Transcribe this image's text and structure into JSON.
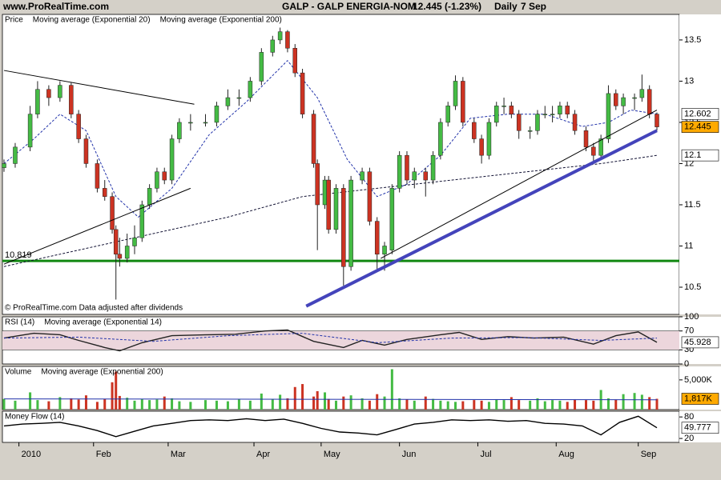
{
  "header": {
    "site": "www.ProRealTime.com",
    "instrument": "GALP - GALP ENERGIA-NOM",
    "quote": "12.445 (-1.23%)",
    "period": "Daily",
    "date": "7 Sep"
  },
  "chart_data": [
    {
      "type": "candlestick",
      "title": "Price",
      "footnote": "© ProRealTime.com  Data adjusted after dividends",
      "up_color": "#44bb44",
      "down_color": "#cc3322",
      "last_color": "#ffaa00",
      "xlim": [
        0,
        175
      ],
      "xticks": [
        {
          "value": 4,
          "label": "2010"
        },
        {
          "value": 24,
          "label": "Feb"
        },
        {
          "value": 44,
          "label": "Mar"
        },
        {
          "value": 67,
          "label": "Apr"
        },
        {
          "value": 85,
          "label": "May"
        },
        {
          "value": 106,
          "label": "Jun"
        },
        {
          "value": 127,
          "label": "Jul"
        },
        {
          "value": 148,
          "label": "Aug"
        },
        {
          "value": 170,
          "label": "Sep"
        }
      ],
      "ylim": [
        10.17,
        13.81
      ],
      "yticks": [
        10.5,
        11,
        11.5,
        12,
        12.5,
        13,
        13.5
      ],
      "x": [
        0,
        3,
        7,
        9,
        12,
        15,
        18,
        20,
        22,
        25,
        27,
        29,
        30,
        31,
        33,
        35,
        37,
        39,
        41,
        43,
        45,
        47,
        50,
        54,
        57,
        60,
        63,
        66,
        69,
        72,
        74,
        76,
        78,
        80,
        83,
        84,
        86,
        87,
        89,
        91,
        93,
        96,
        98,
        100,
        102,
        104,
        106,
        108,
        110,
        113,
        115,
        117,
        119,
        121,
        123,
        126,
        128,
        130,
        132,
        134,
        136,
        138,
        141,
        143,
        145,
        147,
        149,
        151,
        153,
        156,
        158,
        160,
        162,
        164,
        166,
        169,
        171,
        173,
        175
      ],
      "open": [
        11.95,
        12.0,
        12.2,
        12.6,
        12.9,
        12.8,
        12.95,
        12.6,
        12.3,
        12.0,
        11.7,
        11.6,
        11.2,
        10.9,
        10.85,
        11.0,
        11.1,
        11.5,
        11.7,
        11.9,
        11.8,
        12.3,
        12.5,
        12.5,
        12.5,
        12.7,
        12.8,
        12.8,
        13.0,
        13.35,
        13.5,
        13.6,
        13.4,
        13.1,
        12.6,
        12.0,
        11.5,
        11.8,
        11.2,
        11.7,
        10.75,
        11.8,
        11.9,
        11.3,
        10.9,
        10.95,
        11.7,
        12.1,
        11.8,
        11.9,
        11.8,
        12.1,
        12.5,
        12.7,
        13.0,
        12.5,
        12.3,
        12.1,
        12.5,
        12.7,
        12.7,
        12.6,
        12.4,
        12.4,
        12.6,
        12.6,
        12.6,
        12.7,
        12.6,
        12.4,
        12.2,
        12.1,
        12.3,
        12.85,
        12.7,
        12.8,
        12.8,
        12.9,
        12.6
      ],
      "high": [
        12.05,
        12.25,
        12.7,
        13.0,
        12.95,
        13.0,
        12.98,
        12.65,
        12.35,
        12.05,
        11.8,
        11.65,
        11.25,
        11.1,
        11.15,
        11.25,
        11.55,
        11.75,
        11.95,
        11.95,
        12.35,
        12.55,
        12.6,
        12.6,
        12.75,
        12.9,
        12.9,
        13.05,
        13.4,
        13.55,
        13.65,
        13.62,
        13.45,
        13.15,
        12.65,
        12.05,
        11.85,
        11.85,
        11.75,
        11.75,
        11.85,
        11.95,
        11.95,
        11.35,
        11.05,
        11.75,
        12.15,
        12.15,
        11.95,
        11.95,
        12.15,
        12.55,
        12.75,
        13.07,
        13.05,
        12.55,
        12.35,
        12.55,
        12.75,
        12.8,
        12.75,
        12.65,
        12.45,
        12.65,
        12.7,
        12.7,
        12.75,
        12.75,
        12.65,
        12.45,
        12.25,
        12.35,
        12.95,
        12.9,
        12.85,
        12.85,
        13.08,
        12.95,
        12.62
      ],
      "low": [
        11.9,
        11.95,
        12.15,
        12.55,
        12.7,
        12.75,
        12.55,
        12.25,
        11.95,
        11.65,
        11.55,
        11.15,
        10.35,
        10.75,
        10.8,
        10.9,
        11.05,
        11.45,
        11.65,
        11.75,
        11.75,
        12.25,
        12.4,
        12.45,
        12.45,
        12.65,
        12.7,
        12.75,
        12.95,
        13.3,
        13.45,
        13.35,
        13.05,
        12.55,
        11.95,
        10.95,
        11.45,
        11.15,
        11.15,
        10.52,
        10.7,
        11.75,
        11.25,
        10.7,
        10.7,
        10.9,
        11.65,
        11.75,
        11.7,
        11.6,
        11.75,
        12.05,
        12.45,
        12.65,
        12.45,
        12.25,
        12.0,
        12.05,
        12.45,
        12.6,
        12.55,
        12.3,
        12.3,
        12.35,
        12.55,
        12.5,
        12.55,
        12.55,
        12.35,
        12.15,
        12.0,
        12.05,
        12.25,
        12.65,
        12.6,
        12.65,
        12.75,
        12.55,
        12.4
      ],
      "close": [
        12.0,
        12.2,
        12.6,
        12.9,
        12.8,
        12.95,
        12.6,
        12.3,
        12.0,
        11.7,
        11.6,
        11.2,
        10.9,
        10.85,
        11.0,
        11.1,
        11.5,
        11.7,
        11.9,
        11.8,
        12.3,
        12.5,
        12.5,
        12.5,
        12.7,
        12.8,
        12.8,
        13.0,
        13.35,
        13.5,
        13.6,
        13.4,
        13.1,
        12.6,
        12.0,
        11.5,
        11.8,
        11.2,
        11.7,
        10.75,
        11.8,
        11.9,
        11.3,
        10.9,
        11.0,
        11.7,
        12.1,
        11.8,
        11.9,
        11.8,
        12.1,
        12.5,
        12.7,
        13.0,
        12.5,
        12.3,
        12.1,
        12.5,
        12.7,
        12.7,
        12.6,
        12.4,
        12.4,
        12.6,
        12.6,
        12.6,
        12.7,
        12.6,
        12.4,
        12.2,
        12.1,
        12.3,
        12.85,
        12.7,
        12.8,
        12.8,
        12.9,
        12.6,
        12.445
      ],
      "overlays": [
        {
          "name": "Moving average (Exponential 20)",
          "color": "#2233aa",
          "x": [
            0,
            8,
            15,
            22,
            30,
            36,
            45,
            55,
            65,
            76,
            84,
            92,
            100,
            108,
            117,
            125,
            135,
            145,
            155,
            162,
            168,
            175
          ],
          "values": [
            12.0,
            12.3,
            12.6,
            12.4,
            11.6,
            11.35,
            11.7,
            12.35,
            12.75,
            13.25,
            12.8,
            12.05,
            11.6,
            11.75,
            12.1,
            12.55,
            12.6,
            12.6,
            12.45,
            12.5,
            12.65,
            12.602
          ]
        },
        {
          "name": "Moving average (Exponential 200)",
          "color": "#111133",
          "x": [
            0,
            20,
            40,
            60,
            80,
            100,
            120,
            140,
            160,
            175
          ],
          "values": [
            10.75,
            10.95,
            11.15,
            11.35,
            11.6,
            11.7,
            11.8,
            11.9,
            12.0,
            12.1
          ]
        }
      ],
      "trendlines": [
        {
          "style": "thin",
          "color": "#000000",
          "x": [
            0,
            51
          ],
          "values": [
            13.13,
            12.72
          ]
        },
        {
          "style": "thin",
          "color": "#000000",
          "x": [
            0,
            50
          ],
          "values": [
            10.78,
            11.7
          ]
        },
        {
          "style": "thin",
          "color": "#000000",
          "x": [
            101,
            175
          ],
          "values": [
            10.85,
            12.65
          ]
        },
        {
          "style": "thick",
          "color": "#4444bb",
          "x": [
            81,
            175
          ],
          "values": [
            10.27,
            12.4
          ]
        }
      ],
      "hlines": [
        {
          "color": "#118811",
          "value": 10.819
        }
      ]
    },
    {
      "type": "line",
      "ylim": [
        0,
        100
      ],
      "yticks": [
        0,
        30,
        70,
        100
      ],
      "band": [
        30,
        70
      ],
      "band_color": "#ecd6dc",
      "xlim": [
        0,
        175
      ],
      "series": [
        {
          "name": "RSI (14)",
          "color": "#222222",
          "x": [
            0,
            8,
            15,
            20,
            27,
            31,
            37,
            45,
            55,
            62,
            70,
            76,
            83,
            91,
            96,
            102,
            108,
            117,
            122,
            128,
            135,
            142,
            150,
            158,
            164,
            170,
            175
          ],
          "values": [
            55,
            65,
            62,
            50,
            35,
            28,
            45,
            60,
            62,
            63,
            70,
            72,
            48,
            35,
            50,
            40,
            52,
            62,
            67,
            52,
            58,
            55,
            57,
            42,
            60,
            68,
            45.928
          ]
        },
        {
          "name": "Moving average (Exponential 14)",
          "color": "#2233aa",
          "x": [
            0,
            20,
            40,
            60,
            80,
            100,
            120,
            140,
            160,
            175
          ],
          "values": [
            55,
            57,
            48,
            60,
            65,
            45,
            55,
            56,
            50,
            55
          ]
        }
      ]
    },
    {
      "type": "bar",
      "ylim": [
        0,
        7270
      ],
      "yticks": [
        {
          "value": 5000,
          "label": "5,000K"
        }
      ],
      "xlim": [
        0,
        175
      ],
      "last_value_label": "1,817K",
      "last_color": "#ffaa00",
      "series": [
        {
          "name": "Volume",
          "color": "#cc3322",
          "values": [
            1800,
            1500,
            2900,
            1600,
            1400,
            2100,
            1900,
            1700,
            2400,
            1300,
            1800,
            4600,
            6400,
            2300,
            2000,
            1500,
            1800,
            1600,
            1700,
            2200,
            1900,
            1400,
            1300,
            1600,
            1500,
            1400,
            1700,
            1500,
            2700,
            1800,
            2500,
            1900,
            3800,
            4300,
            2200,
            3100,
            2900,
            1800,
            1500,
            2200,
            2400,
            1900,
            1500,
            2600,
            2200,
            6800,
            1900,
            1700,
            1500,
            2200,
            1800,
            1500,
            1400,
            1300,
            1400,
            1600,
            1500,
            1300,
            1700,
            1600,
            2100,
            1600,
            1500,
            1900,
            1400,
            1600,
            1500,
            1300,
            1700,
            1600,
            1500,
            3300,
            1900,
            1700,
            2600,
            2800,
            2500,
            2100,
            1817
          ]
        },
        {
          "name": "Moving average (Exponential 200)",
          "color": "#2233aa",
          "line": true,
          "x": [
            0,
            175
          ],
          "values": [
            1800,
            1650
          ]
        }
      ]
    },
    {
      "type": "line",
      "ylim": [
        9,
        96
      ],
      "yticks": [
        20,
        80
      ],
      "xlim": [
        0,
        175
      ],
      "series": [
        {
          "name": "Money Flow (14)",
          "color": "#000000",
          "x": [
            0,
            5,
            10,
            15,
            20,
            25,
            30,
            35,
            40,
            45,
            50,
            55,
            60,
            65,
            70,
            75,
            80,
            85,
            90,
            95,
            100,
            105,
            110,
            115,
            120,
            125,
            130,
            135,
            140,
            145,
            150,
            155,
            160,
            165,
            170,
            175
          ],
          "values": [
            55,
            60,
            62,
            65,
            55,
            42,
            25,
            40,
            55,
            62,
            70,
            72,
            70,
            75,
            70,
            74,
            62,
            48,
            38,
            35,
            30,
            45,
            60,
            65,
            72,
            70,
            72,
            68,
            70,
            62,
            60,
            55,
            30,
            65,
            82,
            49.777
          ]
        }
      ]
    }
  ]
}
